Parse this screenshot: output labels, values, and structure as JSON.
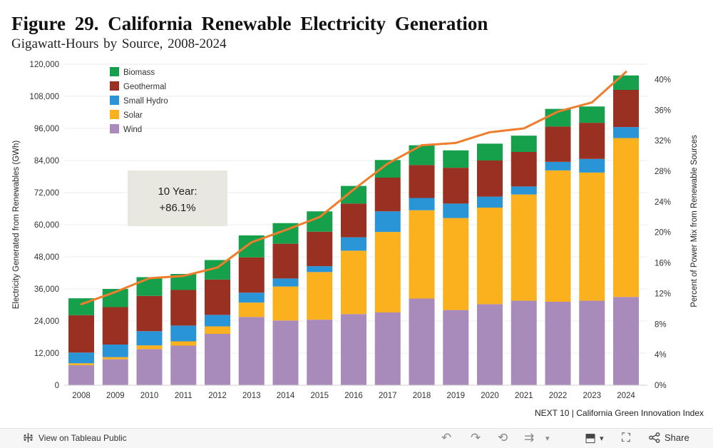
{
  "title": "Figure 29. California Renewable Electricity Generation",
  "subtitle": "Gigawatt-Hours by Source, 2008-2024",
  "source": "NEXT 10 | California Green Innovation Index",
  "annotation": {
    "line1": "10 Year:",
    "line2": "+86.1%"
  },
  "toolbar": {
    "view_label": "View on Tableau Public",
    "share_label": "Share"
  },
  "colors": {
    "Biomass": "#17a04b",
    "Geothermal": "#9a3021",
    "Small Hydro": "#2994d6",
    "Solar": "#fbb11d",
    "Wind": "#a98bbb",
    "line": "#ee7d2c"
  },
  "chart_data": {
    "type": "bar",
    "stacked": true,
    "categories": [
      "2008",
      "2009",
      "2010",
      "2011",
      "2012",
      "2013",
      "2014",
      "2015",
      "2016",
      "2017",
      "2018",
      "2019",
      "2020",
      "2021",
      "2022",
      "2023",
      "2024"
    ],
    "series": [
      {
        "name": "Wind",
        "values": [
          7500,
          9700,
          13500,
          14800,
          19200,
          25500,
          24200,
          24500,
          26600,
          27200,
          32400,
          28100,
          30300,
          31600,
          31200,
          31600,
          33000
        ]
      },
      {
        "name": "Solar",
        "values": [
          700,
          800,
          1400,
          1600,
          2800,
          5400,
          12700,
          17800,
          23700,
          30100,
          33000,
          34400,
          36100,
          39700,
          49100,
          47900,
          59400
        ]
      },
      {
        "name": "Small Hydro",
        "values": [
          4000,
          4700,
          5300,
          5900,
          4300,
          3700,
          3000,
          2200,
          5000,
          7700,
          4600,
          5400,
          4100,
          3000,
          3200,
          5100,
          4100
        ]
      },
      {
        "name": "Geothermal",
        "values": [
          14000,
          14000,
          13200,
          13300,
          13200,
          13200,
          13000,
          12900,
          12600,
          12600,
          12300,
          13400,
          13500,
          12900,
          13200,
          13500,
          13900
        ]
      },
      {
        "name": "Biomass",
        "values": [
          6300,
          6800,
          7000,
          6000,
          7300,
          8200,
          7700,
          7600,
          6600,
          6600,
          7400,
          6500,
          6300,
          6100,
          6600,
          6100,
          5400
        ]
      }
    ],
    "line": {
      "name": "Percent of Power Mix from Renewable Sources",
      "values": [
        10.6,
        12.2,
        14.0,
        14.3,
        15.4,
        18.7,
        20.3,
        22.0,
        25.6,
        29.0,
        31.4,
        31.7,
        33.1,
        33.6,
        35.8,
        37.0,
        41.0
      ]
    },
    "ylabel": "Electricity Generated from Renewables (GWh)",
    "y2label": "Percent of Power Mix from Renewable Sources",
    "ylim": [
      0,
      120000
    ],
    "yticks": [
      0,
      12000,
      24000,
      36000,
      48000,
      60000,
      72000,
      84000,
      96000,
      108000,
      120000
    ],
    "ytick_labels": [
      "0",
      "12,000",
      "24,000",
      "36,000",
      "48,000",
      "60,000",
      "72,000",
      "84,000",
      "96,000",
      "108,000",
      "120,000"
    ],
    "y2lim": [
      0,
      42
    ],
    "y2ticks": [
      0,
      4,
      8,
      12,
      16,
      20,
      24,
      28,
      32,
      36,
      40
    ],
    "y2tick_labels": [
      "0%",
      "4%",
      "8%",
      "12%",
      "16%",
      "20%",
      "24%",
      "28%",
      "32%",
      "36%",
      "40%"
    ],
    "legend": [
      "Biomass",
      "Geothermal",
      "Small Hydro",
      "Solar",
      "Wind"
    ],
    "legend_position": "top-left",
    "grid": true
  }
}
